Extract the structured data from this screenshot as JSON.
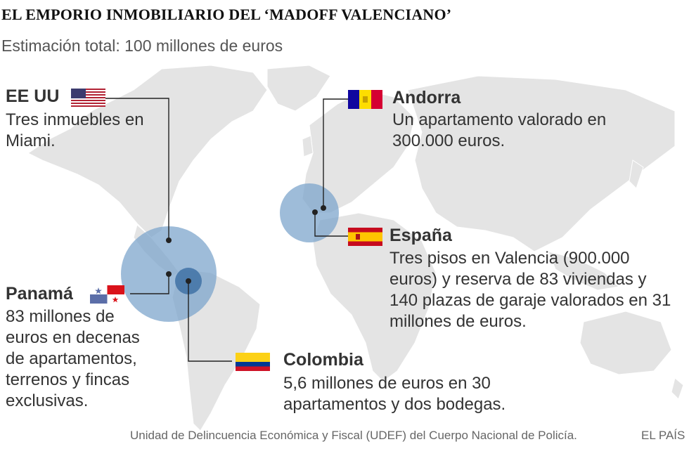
{
  "title": "EL EMPORIO INMOBILIARIO DEL ‘MADOFF VALENCIANO’",
  "subtitle": "Estimación total: 100 millones de euros",
  "locations": {
    "usa": {
      "name": "EE UU",
      "description": "Tres inmuebles en Miami."
    },
    "andorra": {
      "name": "Andorra",
      "description": "Un apartamento valorado en 300.000 euros."
    },
    "spain": {
      "name": "España",
      "description": "Tres pisos en Valencia (900.000 euros) y reserva de 83 viviendas y 140 plazas de garaje valorados en 31 millones de euros."
    },
    "panama": {
      "name": "Panamá",
      "description": "83 millones de euros en decenas de apartamentos, terrenos y fincas exclusivas."
    },
    "colombia": {
      "name": "Colombia",
      "description": "5,6 millones de euros en 30 apartamentos y dos bodegas."
    }
  },
  "footer": {
    "source": "Unidad de Delincuencia Económica y Fiscal (UDEF) del Cuerpo Nacional de Policía.",
    "credit": "EL PAÍS"
  },
  "colors": {
    "bubble": "#7ea6cc",
    "bubble_small": "#3f72a6",
    "land": "#e4e4e4",
    "ocean": "#ffffff",
    "leader_line": "#222222"
  }
}
